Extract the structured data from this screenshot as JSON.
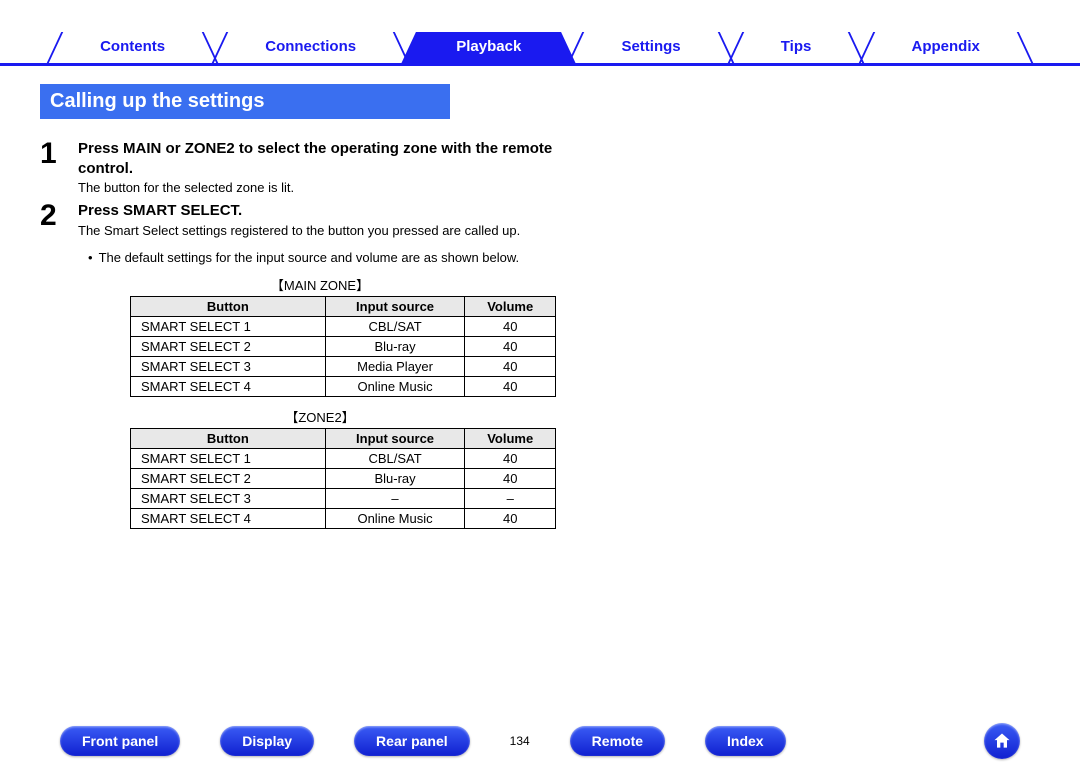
{
  "colors": {
    "accent_blue": "#1a1af0",
    "heading_blue": "#3a6ff0",
    "pill_gradient_top": "#3a5cf5",
    "pill_gradient_bottom": "#1020d0",
    "table_header_bg": "#e8e8e8",
    "text": "#000000",
    "white": "#ffffff"
  },
  "top_nav": {
    "tabs": [
      {
        "label": "Contents",
        "active": false
      },
      {
        "label": "Connections",
        "active": false
      },
      {
        "label": "Playback",
        "active": true
      },
      {
        "label": "Settings",
        "active": false
      },
      {
        "label": "Tips",
        "active": false
      },
      {
        "label": "Appendix",
        "active": false
      }
    ]
  },
  "heading": "Calling up the settings",
  "steps": [
    {
      "num": "1",
      "title": "Press MAIN or ZONE2 to select the operating zone with the remote control.",
      "desc": "The button for the selected zone is lit."
    },
    {
      "num": "2",
      "title": "Press SMART SELECT.",
      "desc": "The Smart Select settings registered to the button you pressed are called up."
    }
  ],
  "bullet_text": "The default settings for the input source and volume are as shown below.",
  "tables": [
    {
      "zone_label": "【MAIN ZONE】",
      "columns": [
        "Button",
        "Input source",
        "Volume"
      ],
      "rows": [
        [
          "SMART SELECT 1",
          "CBL/SAT",
          "40"
        ],
        [
          "SMART SELECT 2",
          "Blu-ray",
          "40"
        ],
        [
          "SMART SELECT 3",
          "Media Player",
          "40"
        ],
        [
          "SMART SELECT 4",
          "Online Music",
          "40"
        ]
      ]
    },
    {
      "zone_label": "【ZONE2】",
      "columns": [
        "Button",
        "Input source",
        "Volume"
      ],
      "rows": [
        [
          "SMART SELECT 1",
          "CBL/SAT",
          "40"
        ],
        [
          "SMART SELECT 2",
          "Blu-ray",
          "40"
        ],
        [
          "SMART SELECT 3",
          "–",
          "–"
        ],
        [
          "SMART SELECT 4",
          "Online Music",
          "40"
        ]
      ]
    }
  ],
  "bottom_nav": {
    "items": [
      "Front panel",
      "Display",
      "Rear panel"
    ],
    "page_number": "134",
    "items2": [
      "Remote",
      "Index"
    ]
  }
}
